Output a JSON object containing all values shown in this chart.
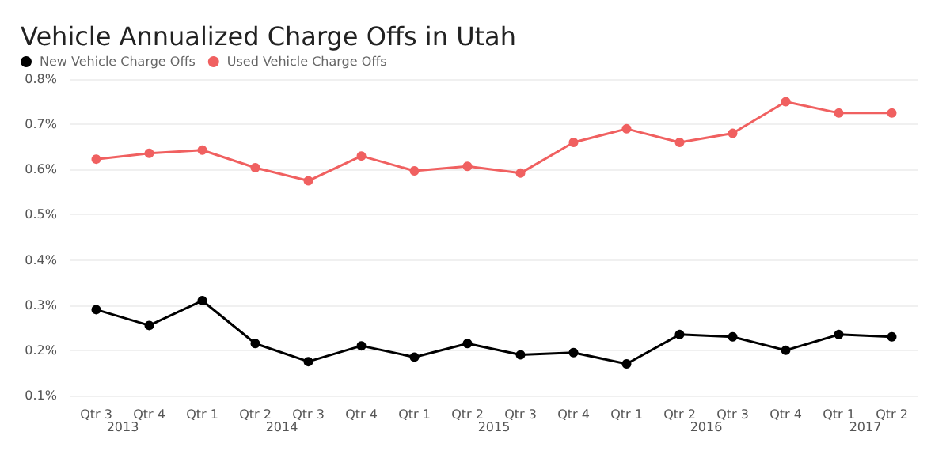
{
  "chart_data": {
    "type": "line",
    "title": "Vehicle Annualized Charge Offs in Utah",
    "categories": [
      "Qtr 3",
      "Qtr 4",
      "Qtr 1",
      "Qtr 2",
      "Qtr 3",
      "Qtr 4",
      "Qtr 1",
      "Qtr 2",
      "Qtr 3",
      "Qtr 4",
      "Qtr 1",
      "Qtr 2",
      "Qtr 3",
      "Qtr 4",
      "Qtr 1",
      "Qtr 2"
    ],
    "series": [
      {
        "name": "New Vehicle Charge Offs",
        "color": "#000000",
        "values": [
          0.29,
          0.255,
          0.31,
          0.215,
          0.175,
          0.21,
          0.185,
          0.215,
          0.19,
          0.195,
          0.17,
          0.235,
          0.23,
          0.2,
          0.235,
          0.23
        ]
      },
      {
        "name": "Used Vehicle Charge Offs",
        "color": "#f06060",
        "values": [
          0.623,
          0.636,
          0.643,
          0.604,
          0.575,
          0.63,
          0.597,
          0.607,
          0.592,
          0.66,
          0.69,
          0.66,
          0.68,
          0.75,
          0.725,
          0.725
        ]
      }
    ],
    "annotations": [
      "2013",
      "2014",
      "2015",
      "2016",
      "2017"
    ],
    "ylim": [
      0.1,
      0.8
    ],
    "yticks": [
      {
        "value": 0.1,
        "label": "0.1%"
      },
      {
        "value": 0.2,
        "label": "0.2%"
      },
      {
        "value": 0.3,
        "label": "0.3%"
      },
      {
        "value": 0.4,
        "label": "0.4%"
      },
      {
        "value": 0.5,
        "label": "0.5%"
      },
      {
        "value": 0.6,
        "label": "0.6%"
      },
      {
        "value": 0.7,
        "label": "0.7%"
      },
      {
        "value": 0.8,
        "label": "0.8%"
      }
    ],
    "grid": "y",
    "legend": "top left",
    "marker": "circle",
    "line_style": "solid"
  }
}
